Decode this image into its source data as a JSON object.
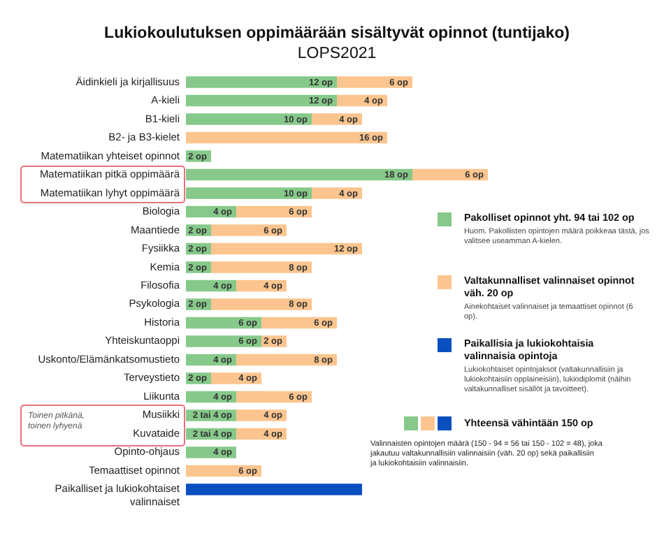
{
  "chart_data": {
    "type": "bar",
    "orientation": "horizontal",
    "stacked": true,
    "legend": "right",
    "title": "Lukiokoulutuksen oppimäärään sisältyvät opinnot (tuntijako)",
    "subtitle": "LOPS2021",
    "categories": [
      "Äidinkieli ja kirjallisuus",
      "A-kieli",
      "B1-kieli",
      "B2- ja B3-kielet",
      "Matematiikan yhteiset opinnot",
      "Matematiikan pitkä oppimäärä",
      "Matematiikan lyhyt oppimäärä",
      "Biologia",
      "Maantiede",
      "Fysiikka",
      "Kemia",
      "Filosofia",
      "Psykologia",
      "Historia",
      "Yhteiskuntaoppi",
      "Uskonto/Elämänkatsomustieto",
      "Terveystieto",
      "Liikunta",
      "Musiikki",
      "Kuvataide",
      "Opinto-ohjaus",
      "Temaattiset opinnot",
      "Paikalliset ja lukiokohtaiset valinnaiset"
    ],
    "series": [
      {
        "name": "Pakolliset opinnot yht. 94 tai 102 op",
        "color": "#86c98a",
        "values": [
          12,
          12,
          10,
          null,
          2,
          18,
          10,
          4,
          2,
          2,
          2,
          4,
          2,
          6,
          6,
          4,
          2,
          4,
          4,
          4,
          4,
          null,
          null
        ],
        "value_labels": [
          "12 op",
          "12 op",
          "10 op",
          null,
          "2 op",
          "18 op",
          "10 op",
          "4 op",
          "2 op",
          "2 op",
          "2 op",
          "4 op",
          "2 op",
          "6 op",
          "6 op",
          "4 op",
          "2 op",
          "4 op",
          "2 tai 4 op",
          "2 tai 4 op",
          "4 op",
          null,
          null
        ]
      },
      {
        "name": "Valtakunnalliset valinnaiset opinnot väh. 20 op",
        "color": "#fcc58f",
        "values": [
          6,
          4,
          4,
          16,
          null,
          6,
          4,
          6,
          6,
          12,
          8,
          4,
          8,
          6,
          2,
          8,
          4,
          6,
          4,
          4,
          null,
          6,
          null
        ],
        "value_labels": [
          "6 op",
          "4 op",
          "4 op",
          "16 op",
          null,
          "6 op",
          "4 op",
          "6 op",
          "6 op",
          "12 op",
          "8 op",
          "4 op",
          "8 op",
          "6 op",
          "2 op",
          "8 op",
          "4 op",
          "6 op",
          "4 op",
          "4 op",
          null,
          "6 op",
          null
        ]
      },
      {
        "name": "Paikallisia ja lukiokohtaisia valinnaisia opintoja",
        "color": "#0a4fc0",
        "values": [
          null,
          null,
          null,
          null,
          null,
          null,
          null,
          null,
          null,
          null,
          null,
          null,
          null,
          null,
          null,
          null,
          null,
          null,
          null,
          null,
          null,
          null,
          14
        ]
      }
    ],
    "annotations": [
      "Huom. Pakollisten opintojen määrä poikkeaa tästä, jos valitsee useamman A-kielen.",
      "Ainekohtaiset valinnaiset ja temaattiset opinnot (6 op).",
      "Lukiokohtaiset opintojaksot (valtakunnallisiin ja lukiokohtaisiin opplaineisiin), lukiodiplomit (näihin valtakunnalliset sisällöt ja tavoitteet).",
      "Yhteensä vähintään 150 op",
      "Toinen pitkänä, toinen lyhyenä",
      "Valinnaisten opintojen määrä (150 - 94 = 56 tai 150 - 102 = 48), joka jakautuu valtakunnallisiin valinnaisiin (väh. 20 op) sekä paikallisiin ja lukiokohtaisiin valinnaisiin."
    ]
  }
}
